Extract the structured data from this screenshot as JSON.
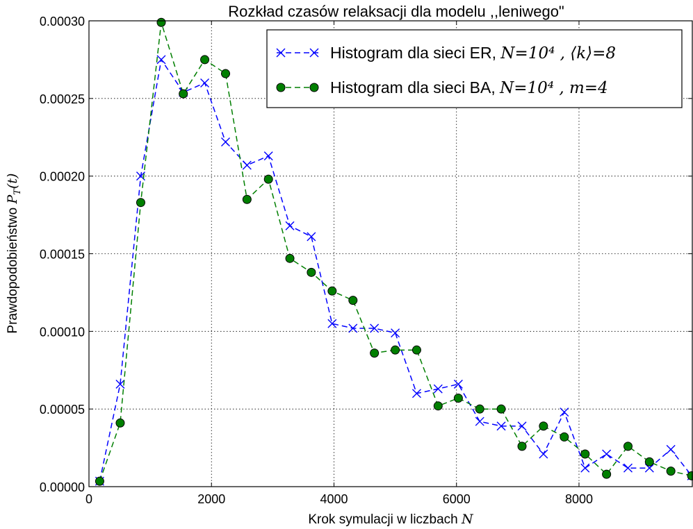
{
  "chart_data": {
    "type": "line",
    "title": "Rozkład czasów relaksacji dla modelu ,,leniwego\"",
    "xlabel": "Krok symulacji w liczbach N",
    "ylabel": "Prawdopodobieństwo P_T(t)",
    "xlim": [
      0,
      9850
    ],
    "ylim": [
      0,
      0.0003
    ],
    "xticks": [
      0,
      2000,
      4000,
      6000,
      8000
    ],
    "xtick_labels": [
      "0",
      "2000",
      "4000",
      "6000",
      "8000"
    ],
    "yticks": [
      0,
      5e-05,
      0.0001,
      0.00015,
      0.0002,
      0.00025,
      0.0003
    ],
    "ytick_labels": [
      "0.00000",
      "0.00005",
      "0.00010",
      "0.00015",
      "0.00020",
      "0.00025",
      "0.00030"
    ],
    "grid": true,
    "legend_position": "top-right",
    "series": [
      {
        "name": "Histogram dla sieci ER, N=10^4 , ⟨k⟩=8",
        "legend_plain": "Histogram dla sieci ER,",
        "legend_math": "N=10⁴ , ⟨k⟩=8",
        "color": "#0000ff",
        "marker": "x",
        "x": [
          175,
          510,
          845,
          1180,
          1540,
          1890,
          2230,
          2580,
          2930,
          3280,
          3630,
          3970,
          4310,
          4660,
          5000,
          5350,
          5700,
          6030,
          6380,
          6730,
          7070,
          7420,
          7760,
          8100,
          8450,
          8800,
          9150,
          9500,
          9840
        ],
        "y": [
          3.5e-06,
          6.6e-05,
          0.0002,
          0.000275,
          0.000254,
          0.00026,
          0.000222,
          0.000207,
          0.000213,
          0.000168,
          0.000161,
          0.000105,
          0.000102,
          0.000102,
          9.9e-05,
          6e-05,
          6.3e-05,
          6.6e-05,
          4.2e-05,
          3.9e-05,
          3.9e-05,
          2.1e-05,
          4.8e-05,
          1.2e-05,
          2.1e-05,
          1.2e-05,
          1.2e-05,
          2.4e-05,
          7e-06
        ]
      },
      {
        "name": "Histogram dla sieci BA, N=10^4 , m=4",
        "legend_plain": "Histogram dla sieci BA,",
        "legend_math": "N=10⁴ , m=4",
        "color": "#007f00",
        "marker": "o",
        "x": [
          175,
          510,
          845,
          1180,
          1540,
          1890,
          2230,
          2580,
          2930,
          3280,
          3630,
          3970,
          4310,
          4660,
          5000,
          5350,
          5700,
          6030,
          6380,
          6730,
          7070,
          7420,
          7760,
          8100,
          8450,
          8800,
          9150,
          9500,
          9840
        ],
        "y": [
          3.5e-06,
          4.1e-05,
          0.000183,
          0.000299,
          0.000253,
          0.000275,
          0.000266,
          0.000185,
          0.000198,
          0.000147,
          0.000138,
          0.000126,
          0.00012,
          8.6e-05,
          8.8e-05,
          8.8e-05,
          5.2e-05,
          5.7e-05,
          5e-05,
          5e-05,
          2.6e-05,
          3.9e-05,
          3.2e-05,
          2.1e-05,
          8e-06,
          2.6e-05,
          1.6e-05,
          1e-05,
          7e-06
        ]
      }
    ]
  }
}
